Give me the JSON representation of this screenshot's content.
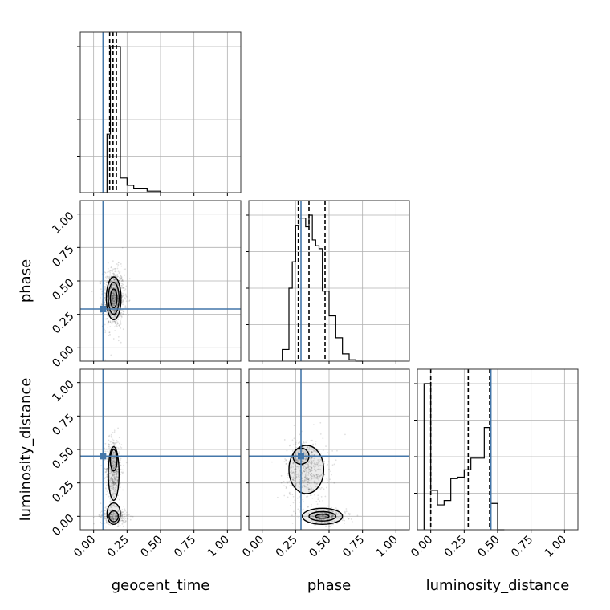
{
  "chart_data": {
    "type": "corner",
    "parameters": [
      "geocent_time",
      "phase",
      "luminosity_distance"
    ],
    "axis_labels": {
      "x": [
        "geocent_time",
        "phase",
        "luminosity_distance"
      ],
      "y": [
        "",
        "phase",
        "luminosity_distance"
      ]
    },
    "tick_values": [
      0.0,
      0.25,
      0.5,
      0.75,
      1.0
    ],
    "tick_labels": [
      "0.00",
      "0.25",
      "0.50",
      "0.75",
      "1.00"
    ],
    "xlim": [
      -0.1,
      1.1
    ],
    "ylim": [
      -0.1,
      1.1
    ],
    "grid": true,
    "truth": {
      "color": "#4477aa",
      "values": {
        "geocent_time": 0.07,
        "phase": 0.29,
        "luminosity_distance": 0.45
      }
    },
    "marginals": [
      {
        "param": "geocent_time",
        "quantiles": [
          0.12,
          0.145,
          0.17
        ],
        "bin_edges": [
          0.05,
          0.1,
          0.125,
          0.15,
          0.2,
          0.25,
          0.3,
          0.4,
          0.5
        ],
        "counts": [
          0.0,
          0.4,
          1.0,
          1.0,
          0.1,
          0.05,
          0.03,
          0.01
        ]
      },
      {
        "param": "phase",
        "quantiles": [
          0.27,
          0.35,
          0.47
        ],
        "bin_edges": [
          0.15,
          0.2,
          0.225,
          0.25,
          0.275,
          0.3,
          0.325,
          0.35,
          0.375,
          0.4,
          0.425,
          0.45,
          0.475,
          0.5,
          0.55,
          0.6,
          0.65,
          0.7,
          0.75
        ],
        "counts": [
          0.08,
          0.5,
          0.68,
          0.93,
          0.98,
          0.98,
          0.92,
          1.0,
          0.83,
          0.79,
          0.77,
          0.48,
          0.48,
          0.31,
          0.16,
          0.05,
          0.01,
          0.0
        ]
      },
      {
        "param": "luminosity_distance",
        "quantiles": [
          0.0,
          0.28,
          0.44
        ],
        "bin_edges": [
          -0.05,
          0.0,
          0.05,
          0.1,
          0.15,
          0.2,
          0.25,
          0.3,
          0.35,
          0.4,
          0.45,
          0.5,
          0.55
        ],
        "counts": [
          1.0,
          0.27,
          0.17,
          0.2,
          0.35,
          0.36,
          0.41,
          0.49,
          0.49,
          0.7,
          0.18,
          0.0
        ]
      }
    ],
    "pairs": [
      {
        "x": "geocent_time",
        "y": "phase",
        "clusters": [
          {
            "cx": 0.15,
            "cy": 0.37,
            "sx": 0.04,
            "sy": 0.11,
            "weight": 1.0
          }
        ],
        "contours": [
          {
            "cx": 0.15,
            "cy": 0.37,
            "rx": 0.055,
            "ry": 0.16
          },
          {
            "cx": 0.15,
            "cy": 0.37,
            "rx": 0.04,
            "ry": 0.12
          },
          {
            "cx": 0.15,
            "cy": 0.37,
            "rx": 0.025,
            "ry": 0.07
          }
        ]
      },
      {
        "x": "geocent_time",
        "y": "luminosity_distance",
        "clusters": [
          {
            "cx": 0.15,
            "cy": 0.35,
            "sx": 0.03,
            "sy": 0.12,
            "weight": 0.65
          },
          {
            "cx": 0.15,
            "cy": 0.0,
            "sx": 0.05,
            "sy": 0.03,
            "weight": 0.35
          }
        ],
        "contours": [
          {
            "cx": 0.15,
            "cy": 0.32,
            "rx": 0.04,
            "ry": 0.2
          },
          {
            "cx": 0.15,
            "cy": 0.42,
            "rx": 0.025,
            "ry": 0.08
          },
          {
            "cx": 0.15,
            "cy": 0.02,
            "rx": 0.05,
            "ry": 0.08
          },
          {
            "cx": 0.15,
            "cy": 0.0,
            "rx": 0.035,
            "ry": 0.04
          }
        ]
      },
      {
        "x": "phase",
        "y": "luminosity_distance",
        "clusters": [
          {
            "cx": 0.33,
            "cy": 0.35,
            "sx": 0.08,
            "sy": 0.12,
            "weight": 0.65
          },
          {
            "cx": 0.47,
            "cy": 0.0,
            "sx": 0.08,
            "sy": 0.03,
            "weight": 0.35
          }
        ],
        "contours": [
          {
            "cx": 0.33,
            "cy": 0.35,
            "rx": 0.13,
            "ry": 0.18
          },
          {
            "cx": 0.29,
            "cy": 0.45,
            "rx": 0.06,
            "ry": 0.06
          },
          {
            "cx": 0.45,
            "cy": 0.0,
            "rx": 0.15,
            "ry": 0.06
          },
          {
            "cx": 0.45,
            "cy": 0.0,
            "rx": 0.1,
            "ry": 0.035
          },
          {
            "cx": 0.45,
            "cy": 0.0,
            "rx": 0.05,
            "ry": 0.015
          }
        ]
      }
    ]
  }
}
